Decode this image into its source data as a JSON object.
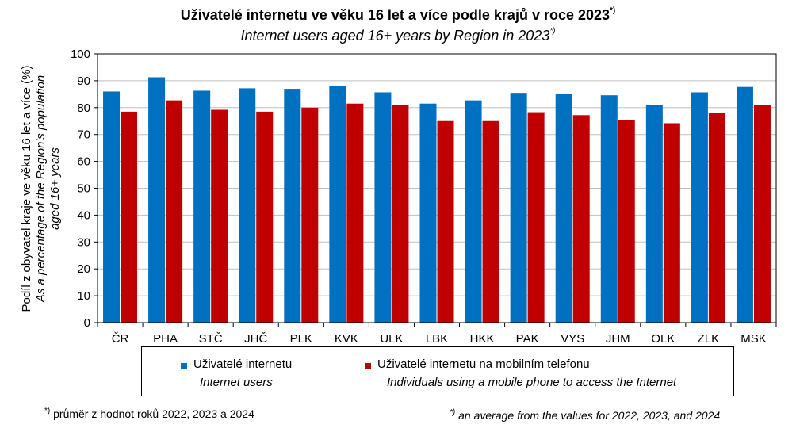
{
  "title": {
    "main": "Uživatelé internetu ve věku 16 let a více podle krajů v roce 2023",
    "main_sup": "*)",
    "sub": "Internet users aged 16+ years by Region in 2023",
    "sub_sup": "*)"
  },
  "legend": {
    "series1_cz": "Uživatelé internetu",
    "series1_en": "Internet users",
    "series2_cz": "Uživatelé internetu na mobilním telefonu",
    "series2_en": "Individuals using a mobile phone to access the Internet"
  },
  "footnotes": {
    "cz_mark": "*)",
    "cz": "průměr z hodnot roků 2022, 2023 a 2024",
    "en_mark": "*)",
    "en": "an average from the values for 2022, 2023, and 2024"
  },
  "colors": {
    "series1": "#0070C0",
    "series2": "#C00000",
    "grid": "#BFBFBF"
  },
  "chart_data": {
    "type": "bar",
    "title": "Uživatelé internetu ve věku 16 let a více podle krajů v roce 2023",
    "ylabel": "Podíl z obyvatel kraje ve věku 16 let a více (%)",
    "ylabel_en_line1": "As a percentage of the Region's population",
    "ylabel_en_line2": "aged 16+ years",
    "ylim": [
      0,
      100
    ],
    "yticks": [
      0,
      10,
      20,
      30,
      40,
      50,
      60,
      70,
      80,
      90,
      100
    ],
    "grid": true,
    "categories": [
      "ČR",
      "PHA",
      "STČ",
      "JHČ",
      "PLK",
      "KVK",
      "ULK",
      "LBK",
      "HKK",
      "PAK",
      "VYS",
      "JHM",
      "OLK",
      "ZLK",
      "MSK"
    ],
    "series": [
      {
        "name": "Uživatelé internetu",
        "values": [
          86,
          91.3,
          86.3,
          87.2,
          87,
          88,
          85.7,
          81.5,
          82.7,
          85.5,
          85.2,
          84.6,
          81,
          85.7,
          87.7
        ]
      },
      {
        "name": "Uživatelé internetu na mobilním telefonu",
        "values": [
          78.5,
          82.7,
          79.2,
          78.5,
          80,
          81.5,
          81,
          75,
          75,
          78.3,
          77.2,
          75.3,
          74.2,
          78,
          81
        ]
      }
    ]
  }
}
